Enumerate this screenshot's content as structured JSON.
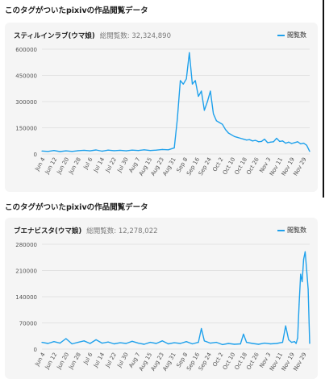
{
  "section1": {
    "heading": "このタグがついたpixivの作品閲覧データ",
    "title": "スティルインラブ(ウマ娘)",
    "total_label": "総閲覧数: 32,324,890",
    "legend": "閲覧数"
  },
  "section2": {
    "heading": "このタグがついたpixivの作品閲覧データ",
    "title": "ブエナビスタ(ウマ娘)",
    "total_label": "総閲覧数: 12,278,022",
    "legend": "閲覧数"
  },
  "colors": {
    "line": "#1fa1ec",
    "card": "#f5f5f5",
    "grid": "#e2e2e2"
  },
  "chart_data": [
    {
      "type": "line",
      "title": "スティルインラブ(ウマ娘)",
      "series_name": "閲覧数",
      "x_tick_labels": [
        "Jun 4",
        "Jun 12",
        "Jun 20",
        "Jun 28",
        "Jul 6",
        "Jul 14",
        "Jul 22",
        "Jul 30",
        "Aug 7",
        "Aug 15",
        "Aug 23",
        "Aug 31",
        "Sep 8",
        "Sep 16",
        "Sep 24",
        "Oct 2",
        "Oct 10",
        "Oct 18",
        "Oct 26",
        "Nov 3",
        "Nov 11",
        "Nov 19",
        "Nov 29"
      ],
      "y_ticks": [
        0,
        150000,
        300000,
        450000,
        600000
      ],
      "ylim": [
        0,
        600000
      ],
      "x_days": [
        0,
        4,
        8,
        12,
        16,
        20,
        24,
        28,
        32,
        36,
        40,
        44,
        48,
        52,
        56,
        60,
        64,
        68,
        72,
        76,
        80,
        84,
        88,
        90,
        92,
        94,
        96,
        98,
        100,
        102,
        104,
        106,
        108,
        110,
        112,
        114,
        116,
        118,
        120,
        122,
        124,
        126,
        128,
        130,
        132,
        134,
        136,
        138,
        140,
        142,
        144,
        146,
        148,
        150,
        152,
        154,
        156,
        158,
        160,
        162,
        164,
        166,
        168,
        170,
        172,
        174,
        176,
        178
      ],
      "values": [
        17000,
        15000,
        20000,
        14000,
        18000,
        15000,
        19000,
        21000,
        18000,
        23000,
        16000,
        22000,
        19000,
        21000,
        18000,
        22000,
        20000,
        24000,
        20000,
        22000,
        26000,
        24000,
        35000,
        200000,
        420000,
        400000,
        430000,
        580000,
        400000,
        420000,
        330000,
        360000,
        250000,
        300000,
        360000,
        230000,
        190000,
        180000,
        170000,
        140000,
        120000,
        110000,
        100000,
        95000,
        90000,
        85000,
        80000,
        82000,
        75000,
        78000,
        70000,
        72000,
        85000,
        65000,
        68000,
        70000,
        90000,
        72000,
        75000,
        62000,
        68000,
        60000,
        65000,
        70000,
        58000,
        62000,
        50000,
        15000
      ]
    },
    {
      "type": "line",
      "title": "ブエナビスタ(ウマ娘)",
      "series_name": "閲覧数",
      "x_tick_labels": [
        "Jun 4",
        "Jun 12",
        "Jun 20",
        "Jun 28",
        "Jul 6",
        "Jul 14",
        "Jul 22",
        "Jul 30",
        "Aug 7",
        "Aug 15",
        "Aug 23",
        "Aug 31",
        "Sep 8",
        "Sep 16",
        "Sep 24",
        "Oct 2",
        "Oct 10",
        "Oct 18",
        "Oct 26",
        "Nov 3",
        "Nov 11",
        "Nov 19",
        "Nov 29"
      ],
      "y_ticks": [
        0,
        70000,
        140000,
        210000,
        280000
      ],
      "ylim": [
        0,
        280000
      ],
      "x_days": [
        0,
        4,
        8,
        12,
        16,
        20,
        24,
        28,
        32,
        36,
        40,
        44,
        48,
        52,
        56,
        60,
        64,
        68,
        72,
        76,
        80,
        84,
        88,
        92,
        96,
        100,
        104,
        106,
        108,
        112,
        116,
        120,
        124,
        128,
        132,
        134,
        136,
        140,
        144,
        148,
        152,
        156,
        160,
        162,
        164,
        166,
        168,
        169,
        170,
        171,
        172,
        173,
        174,
        175,
        176,
        177,
        178
      ],
      "values": [
        18000,
        15000,
        20000,
        16000,
        28000,
        14000,
        18000,
        22000,
        15000,
        25000,
        16000,
        19000,
        14000,
        17000,
        15000,
        21000,
        16000,
        13000,
        18000,
        15000,
        22000,
        14000,
        17000,
        15000,
        20000,
        14000,
        18000,
        55000,
        22000,
        16000,
        18000,
        12000,
        15000,
        13000,
        14000,
        40000,
        18000,
        15000,
        13000,
        16000,
        14000,
        15000,
        18000,
        62000,
        25000,
        18000,
        20000,
        15000,
        30000,
        120000,
        200000,
        180000,
        240000,
        260000,
        210000,
        160000,
        15000
      ]
    }
  ]
}
